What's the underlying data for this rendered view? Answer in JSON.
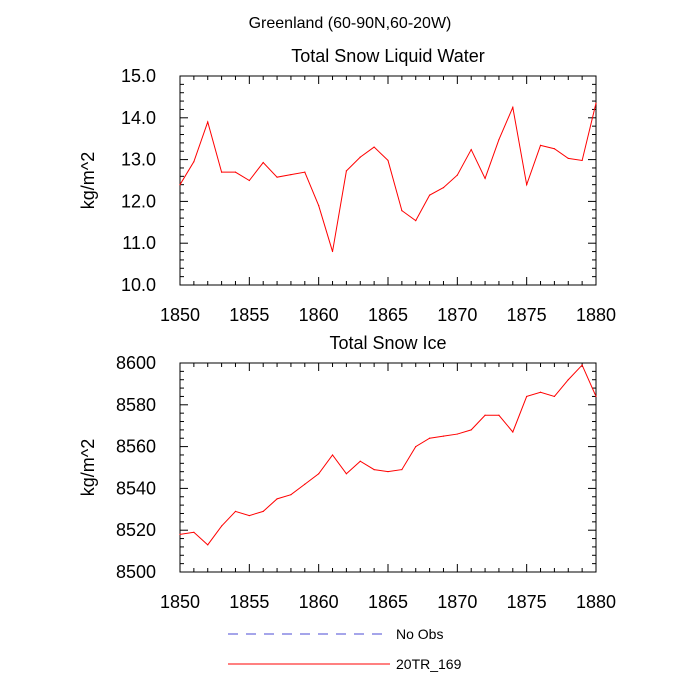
{
  "page_title": "Greenland (60-90N,60-20W)",
  "colors": {
    "series": "#ff0000",
    "no_obs": "#4b4bd6",
    "axis": "#000000"
  },
  "legend": [
    {
      "label": "No Obs",
      "style": "dashed",
      "color": "#4b4bd6"
    },
    {
      "label": "20TR_169",
      "style": "solid",
      "color": "#ff0000"
    }
  ],
  "chart_data": [
    {
      "type": "line",
      "title": "Total Snow Liquid Water",
      "xlabel": "",
      "ylabel": "kg/m^2",
      "xlim": [
        1850,
        1880
      ],
      "ylim": [
        10.0,
        15.0
      ],
      "x_ticks": [
        "1850",
        "1855",
        "1860",
        "1865",
        "1870",
        "1875",
        "1880"
      ],
      "y_ticks": [
        "10.0",
        "11.0",
        "12.0",
        "13.0",
        "14.0",
        "15.0"
      ],
      "x": [
        1850,
        1851,
        1852,
        1853,
        1854,
        1855,
        1856,
        1857,
        1858,
        1859,
        1860,
        1861,
        1862,
        1863,
        1864,
        1865,
        1866,
        1867,
        1868,
        1869,
        1870,
        1871,
        1872,
        1873,
        1874,
        1875,
        1876,
        1877,
        1878,
        1879,
        1880
      ],
      "series": [
        {
          "name": "20TR_169",
          "values": [
            12.4,
            12.95,
            13.9,
            12.7,
            12.7,
            12.5,
            12.93,
            12.58,
            12.64,
            12.7,
            11.9,
            10.8,
            12.73,
            13.06,
            13.3,
            12.98,
            11.78,
            11.54,
            12.15,
            12.33,
            12.63,
            13.24,
            12.55,
            13.48,
            14.25,
            12.4,
            13.34,
            13.26,
            13.03,
            12.98,
            14.35
          ]
        }
      ]
    },
    {
      "type": "line",
      "title": "Total Snow Ice",
      "xlabel": "",
      "ylabel": "kg/m^2",
      "xlim": [
        1850,
        1880
      ],
      "ylim": [
        8500,
        8600
      ],
      "x_ticks": [
        "1850",
        "1855",
        "1860",
        "1865",
        "1870",
        "1875",
        "1880"
      ],
      "y_ticks": [
        "8500",
        "8520",
        "8540",
        "8560",
        "8580",
        "8600"
      ],
      "x": [
        1850,
        1851,
        1852,
        1853,
        1854,
        1855,
        1856,
        1857,
        1858,
        1859,
        1860,
        1861,
        1862,
        1863,
        1864,
        1865,
        1866,
        1867,
        1868,
        1869,
        1870,
        1871,
        1872,
        1873,
        1874,
        1875,
        1876,
        1877,
        1878,
        1879,
        1880
      ],
      "series": [
        {
          "name": "20TR_169",
          "values": [
            8518,
            8519,
            8513,
            8522,
            8529,
            8527,
            8529,
            8535,
            8537,
            8542,
            8547,
            8556,
            8547,
            8553,
            8549,
            8548,
            8549,
            8560,
            8564,
            8565,
            8566,
            8568,
            8575,
            8575,
            8567,
            8584,
            8586,
            8584,
            8592,
            8599,
            8584
          ]
        }
      ]
    }
  ]
}
